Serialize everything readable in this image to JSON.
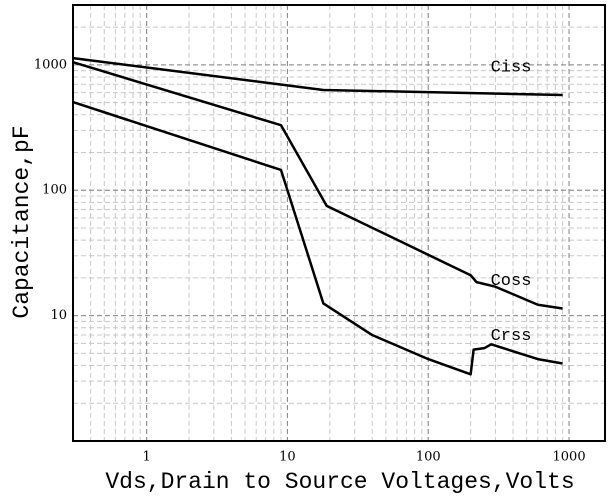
{
  "chart_data": {
    "type": "line",
    "xlabel": "Vds,Drain to Source Voltages,Volts",
    "ylabel": "Capacitance,pF",
    "xscale": "log",
    "yscale": "log",
    "xlim": [
      0.3,
      1800
    ],
    "ylim": [
      1,
      3000
    ],
    "xticks": [
      1,
      10,
      100,
      1000
    ],
    "yticks": [
      10,
      100,
      1000
    ],
    "grid": true,
    "minor_grid": true,
    "series": [
      {
        "name": "Ciss",
        "color": "#000000",
        "x": [
          0.3,
          18,
          900
        ],
        "values": [
          1130,
          630,
          575
        ]
      },
      {
        "name": "Coss",
        "color": "#000000",
        "x": [
          0.3,
          9,
          19,
          200,
          220,
          300,
          600,
          900
        ],
        "values": [
          1050,
          330,
          75,
          21,
          18.5,
          17,
          12.2,
          11.4
        ]
      },
      {
        "name": "Crss",
        "color": "#000000",
        "x": [
          0.3,
          9,
          18,
          40,
          100,
          200,
          210,
          250,
          280,
          600,
          900
        ],
        "values": [
          505,
          145,
          12.5,
          7,
          4.5,
          3.4,
          5.35,
          5.5,
          5.9,
          4.5,
          4.15
        ]
      }
    ]
  }
}
